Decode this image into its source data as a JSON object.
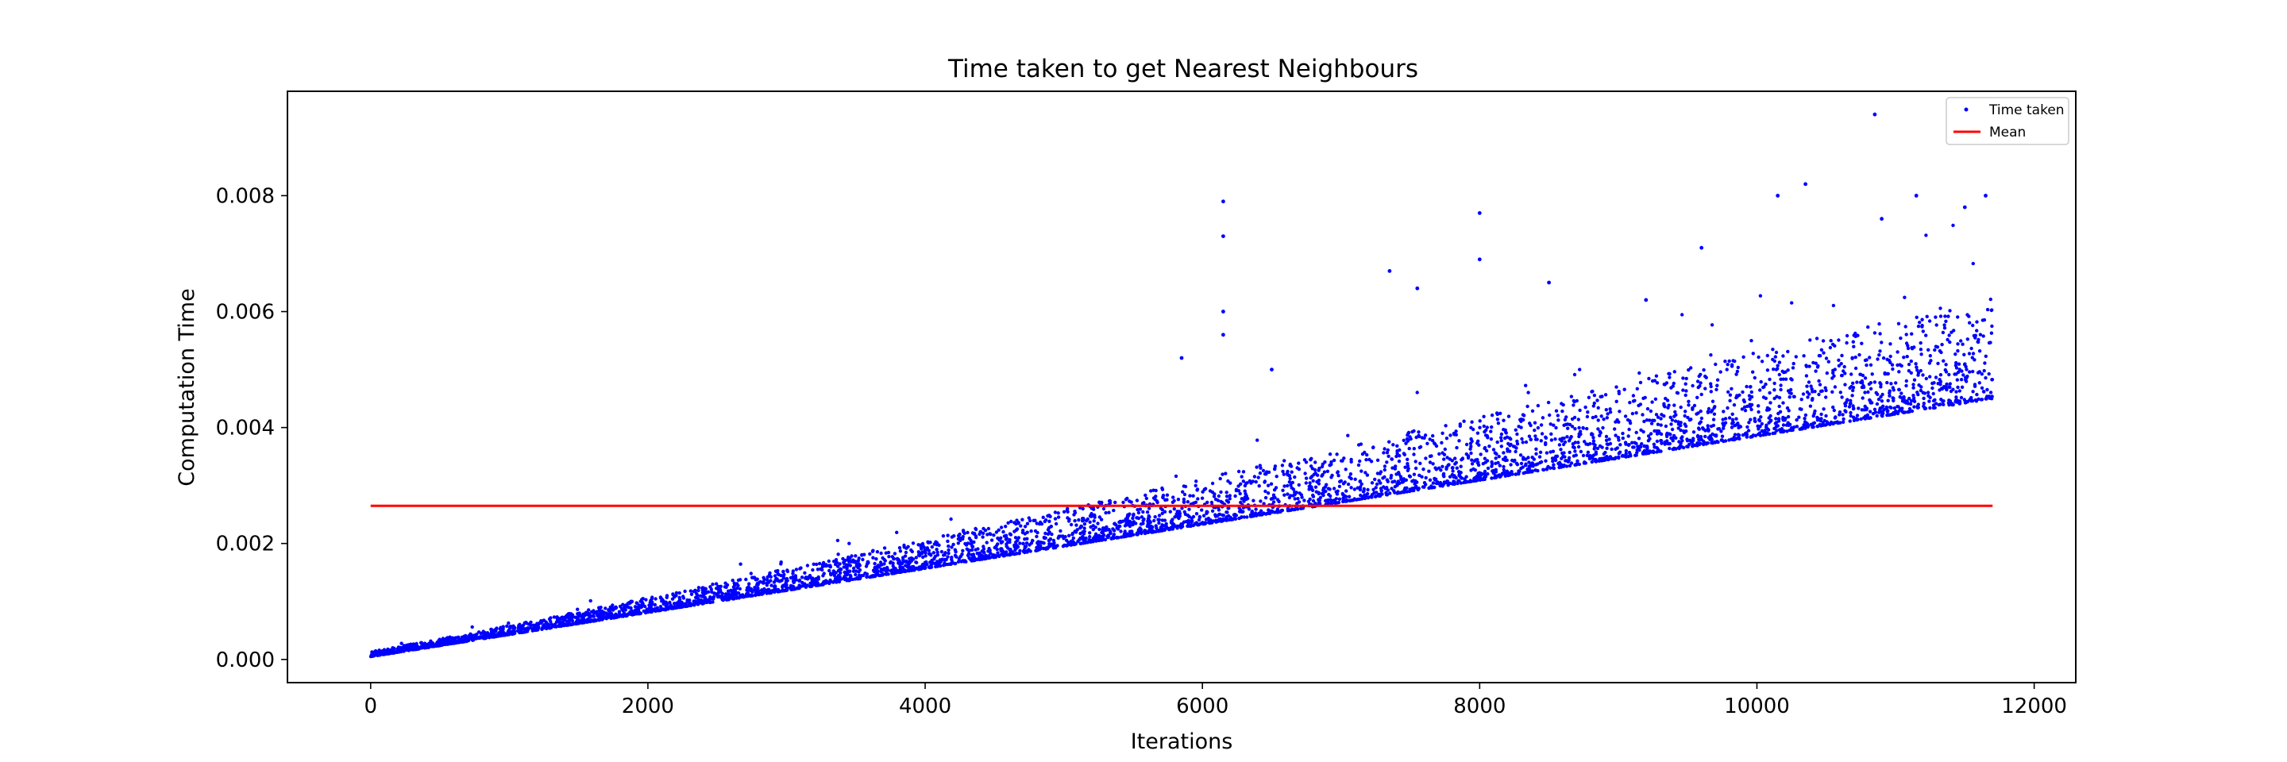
{
  "chart_data": {
    "type": "scatter",
    "title": "Time taken to get Nearest Neighbours",
    "xlabel": "Iterations",
    "ylabel": "Computation Time",
    "xlim": [
      -600,
      12300
    ],
    "ylim": [
      -0.0004,
      0.0098
    ],
    "grid": false,
    "legend_position": "top-right",
    "x_ticks": [
      0,
      2000,
      4000,
      6000,
      8000,
      10000,
      12000
    ],
    "x_tick_labels": [
      "0",
      "2000",
      "4000",
      "6000",
      "8000",
      "10000",
      "12000"
    ],
    "y_ticks": [
      0.0,
      0.002,
      0.004,
      0.006,
      0.008
    ],
    "y_tick_labels": [
      "0.000",
      "0.002",
      "0.004",
      "0.006",
      "0.008"
    ],
    "series": [
      {
        "name": "Time taken",
        "kind": "scatter",
        "color": "#0000ff",
        "x_range": [
          0,
          11700
        ],
        "count": 11700,
        "baseline": [
          [
            0,
            5e-05
          ],
          [
            11700,
            0.0045
          ]
        ],
        "spread_at_end": 0.0032,
        "points": [
          [
            10850,
            0.0094
          ],
          [
            6150,
            0.0079
          ],
          [
            6150,
            0.0073
          ],
          [
            10350,
            0.0082
          ],
          [
            10150,
            0.008
          ],
          [
            11150,
            0.008
          ],
          [
            11650,
            0.008
          ],
          [
            8000,
            0.0077
          ],
          [
            11500,
            0.0078
          ],
          [
            7350,
            0.0067
          ],
          [
            8000,
            0.0069
          ],
          [
            8500,
            0.0065
          ],
          [
            6150,
            0.006
          ],
          [
            6150,
            0.0056
          ],
          [
            7550,
            0.0064
          ],
          [
            9600,
            0.0071
          ],
          [
            9200,
            0.0062
          ],
          [
            10900,
            0.0076
          ],
          [
            5850,
            0.0052
          ],
          [
            6500,
            0.005
          ]
        ]
      },
      {
        "name": "Mean",
        "kind": "line",
        "color": "#ff0000",
        "x": [
          0,
          11700
        ],
        "y": [
          0.00265,
          0.00265
        ]
      }
    ]
  }
}
